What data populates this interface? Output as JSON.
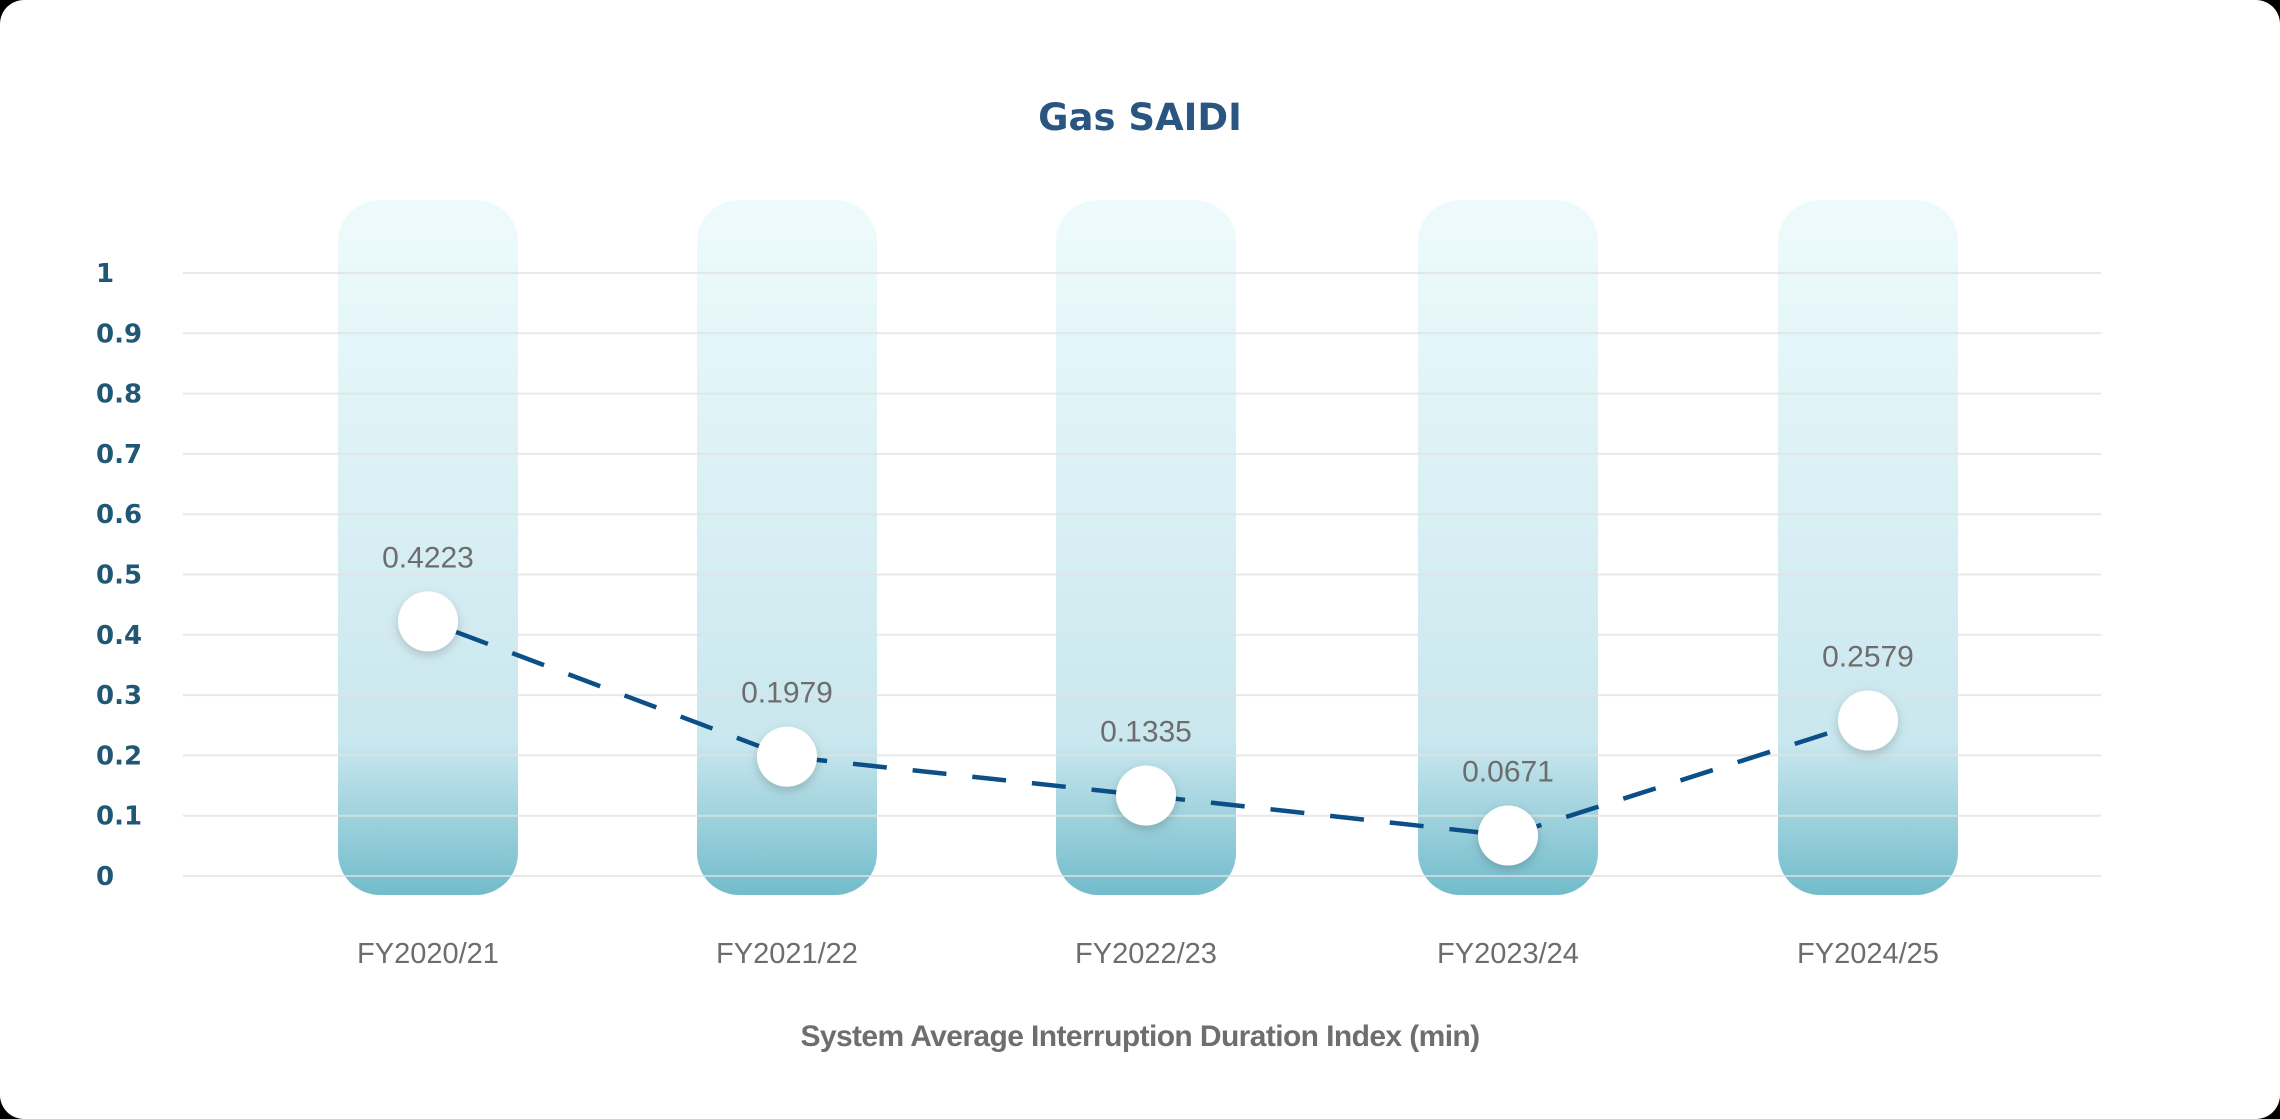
{
  "title": "Gas SAIDI",
  "x_axis_label": "System Average Interruption Duration Index (min)",
  "colors": {
    "title": "#2a5581",
    "y_ticks": "#1f5775",
    "gridline": "#e2e2e2",
    "bar_top": "#eefbfd",
    "bar_mid": "#c9e7ee",
    "bar_bottom": "#72bccb",
    "line": "#0b4f86",
    "marker": "#ffffff",
    "labels": "#6d6d6d"
  },
  "chart_data": {
    "type": "line",
    "title": "Gas SAIDI",
    "xlabel": "System Average Interruption Duration Index (min)",
    "ylabel": "",
    "categories": [
      "FY2020/21",
      "FY2021/22",
      "FY2022/23",
      "FY2023/24",
      "FY2024/25"
    ],
    "series": [
      {
        "name": "Gas SAIDI",
        "values": [
          0.4223,
          0.1979,
          0.1335,
          0.0671,
          0.2579
        ],
        "value_labels": [
          "0.4223",
          "0.1979",
          "0.1335",
          "0.0671",
          "0.2579"
        ],
        "line_style": "dashed",
        "marker": "circle"
      }
    ],
    "ylim": [
      0,
      1
    ],
    "yticks": [
      "0",
      "0.1",
      "0.2",
      "0.3",
      "0.4",
      "0.5",
      "0.6",
      "0.7",
      "0.8",
      "0.9",
      "1"
    ],
    "grid": true,
    "legend": "none",
    "decorations": "rounded gradient column behind each category"
  }
}
